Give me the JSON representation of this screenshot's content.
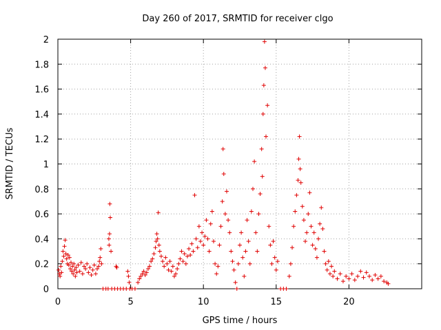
{
  "chart_data": {
    "type": "scatter",
    "title": "Day 260 of 2017, SRMTID for receiver clgo",
    "xlabel": "GPS time / hours",
    "ylabel": "SRMTID / TECUs",
    "xlim": [
      0,
      25
    ],
    "ylim": [
      0,
      2
    ],
    "x_ticks": [
      0,
      5,
      10,
      15,
      20
    ],
    "x_tick_labels": [
      "0",
      "5",
      "10",
      "15",
      "20"
    ],
    "y_ticks": [
      0,
      0.2,
      0.4,
      0.6,
      0.8,
      1,
      1.2,
      1.4,
      1.6,
      1.8,
      2
    ],
    "y_tick_labels": [
      "0",
      "0.2",
      "0.4",
      "0.6",
      "0.8",
      "1",
      "1.2",
      "1.4",
      "1.6",
      "1.8",
      "2"
    ],
    "grid": true,
    "marker": "+",
    "marker_color": "#e00000",
    "series": [
      {
        "name": "SRMTID",
        "points": [
          [
            0.05,
            0.15
          ],
          [
            0.1,
            0.12
          ],
          [
            0.15,
            0.1
          ],
          [
            0.2,
            0.18
          ],
          [
            0.25,
            0.13
          ],
          [
            0.3,
            0.22
          ],
          [
            0.35,
            0.3
          ],
          [
            0.4,
            0.26
          ],
          [
            0.45,
            0.34
          ],
          [
            0.5,
            0.39
          ],
          [
            0.55,
            0.28
          ],
          [
            0.6,
            0.24
          ],
          [
            0.65,
            0.2
          ],
          [
            0.7,
            0.27
          ],
          [
            0.75,
            0.19
          ],
          [
            0.8,
            0.25
          ],
          [
            0.85,
            0.16
          ],
          [
            0.9,
            0.21
          ],
          [
            0.95,
            0.14
          ],
          [
            1.0,
            0.18
          ],
          [
            1.05,
            0.12
          ],
          [
            1.1,
            0.2
          ],
          [
            1.15,
            0.15
          ],
          [
            1.2,
            0.1
          ],
          [
            1.25,
            0.17
          ],
          [
            1.3,
            0.13
          ],
          [
            1.4,
            0.19
          ],
          [
            1.5,
            0.14
          ],
          [
            1.6,
            0.21
          ],
          [
            1.7,
            0.12
          ],
          [
            1.8,
            0.18
          ],
          [
            1.9,
            0.16
          ],
          [
            2.0,
            0.2
          ],
          [
            2.1,
            0.13
          ],
          [
            2.2,
            0.17
          ],
          [
            2.3,
            0.11
          ],
          [
            2.4,
            0.15
          ],
          [
            2.5,
            0.19
          ],
          [
            2.6,
            0.12
          ],
          [
            2.7,
            0.16
          ],
          [
            2.8,
            0.18
          ],
          [
            2.85,
            0.22
          ],
          [
            2.9,
            0.25
          ],
          [
            2.95,
            0.32
          ],
          [
            3.0,
            0.2
          ],
          [
            3.1,
            0.0
          ],
          [
            3.3,
            0.0
          ],
          [
            3.45,
            0.0
          ],
          [
            3.5,
            0.4
          ],
          [
            3.52,
            0.35
          ],
          [
            3.55,
            0.44
          ],
          [
            3.57,
            0.68
          ],
          [
            3.6,
            0.57
          ],
          [
            3.65,
            0.3
          ],
          [
            3.7,
            0.0
          ],
          [
            3.9,
            0.0
          ],
          [
            4.0,
            0.18
          ],
          [
            4.05,
            0.17
          ],
          [
            4.1,
            0.0
          ],
          [
            4.3,
            0.0
          ],
          [
            4.5,
            0.0
          ],
          [
            4.7,
            0.0
          ],
          [
            4.8,
            0.14
          ],
          [
            4.85,
            0.1
          ],
          [
            4.9,
            0.05
          ],
          [
            4.95,
            0.0
          ],
          [
            5.1,
            0.0
          ],
          [
            5.3,
            0.0
          ],
          [
            5.5,
            0.05
          ],
          [
            5.6,
            0.08
          ],
          [
            5.7,
            0.1
          ],
          [
            5.8,
            0.12
          ],
          [
            5.9,
            0.14
          ],
          [
            6.0,
            0.11
          ],
          [
            6.1,
            0.13
          ],
          [
            6.2,
            0.16
          ],
          [
            6.3,
            0.18
          ],
          [
            6.4,
            0.22
          ],
          [
            6.5,
            0.24
          ],
          [
            6.6,
            0.28
          ],
          [
            6.7,
            0.33
          ],
          [
            6.75,
            0.38
          ],
          [
            6.8,
            0.44
          ],
          [
            6.85,
            0.4
          ],
          [
            6.9,
            0.61
          ],
          [
            6.95,
            0.35
          ],
          [
            7.0,
            0.3
          ],
          [
            7.1,
            0.26
          ],
          [
            7.2,
            0.22
          ],
          [
            7.3,
            0.18
          ],
          [
            7.4,
            0.25
          ],
          [
            7.5,
            0.2
          ],
          [
            7.6,
            0.15
          ],
          [
            7.7,
            0.22
          ],
          [
            7.8,
            0.14
          ],
          [
            7.9,
            0.18
          ],
          [
            8.0,
            0.1
          ],
          [
            8.1,
            0.12
          ],
          [
            8.2,
            0.16
          ],
          [
            8.3,
            0.2
          ],
          [
            8.4,
            0.24
          ],
          [
            8.5,
            0.3
          ],
          [
            8.6,
            0.22
          ],
          [
            8.7,
            0.28
          ],
          [
            8.8,
            0.2
          ],
          [
            8.9,
            0.26
          ],
          [
            9.0,
            0.32
          ],
          [
            9.1,
            0.27
          ],
          [
            9.2,
            0.36
          ],
          [
            9.3,
            0.3
          ],
          [
            9.4,
            0.75
          ],
          [
            9.5,
            0.4
          ],
          [
            9.6,
            0.33
          ],
          [
            9.7,
            0.5
          ],
          [
            9.8,
            0.38
          ],
          [
            9.9,
            0.45
          ],
          [
            10.0,
            0.35
          ],
          [
            10.1,
            0.42
          ],
          [
            10.2,
            0.55
          ],
          [
            10.3,
            0.4
          ],
          [
            10.4,
            0.3
          ],
          [
            10.5,
            0.52
          ],
          [
            10.6,
            0.62
          ],
          [
            10.7,
            0.38
          ],
          [
            10.8,
            0.2
          ],
          [
            10.9,
            0.12
          ],
          [
            11.0,
            0.18
          ],
          [
            11.1,
            0.35
          ],
          [
            11.2,
            0.5
          ],
          [
            11.3,
            0.7
          ],
          [
            11.35,
            1.12
          ],
          [
            11.4,
            0.92
          ],
          [
            11.5,
            0.6
          ],
          [
            11.6,
            0.78
          ],
          [
            11.7,
            0.55
          ],
          [
            11.8,
            0.45
          ],
          [
            11.9,
            0.3
          ],
          [
            12.0,
            0.22
          ],
          [
            12.1,
            0.15
          ],
          [
            12.2,
            0.05
          ],
          [
            12.3,
            0.0
          ],
          [
            12.4,
            0.2
          ],
          [
            12.5,
            0.35
          ],
          [
            12.6,
            0.45
          ],
          [
            12.7,
            0.25
          ],
          [
            12.8,
            0.1
          ],
          [
            12.9,
            0.3
          ],
          [
            13.0,
            0.55
          ],
          [
            13.1,
            0.38
          ],
          [
            13.2,
            0.2
          ],
          [
            13.3,
            0.62
          ],
          [
            13.4,
            0.8
          ],
          [
            13.5,
            1.02
          ],
          [
            13.6,
            0.45
          ],
          [
            13.7,
            0.3
          ],
          [
            13.8,
            0.6
          ],
          [
            13.9,
            0.76
          ],
          [
            14.0,
            1.12
          ],
          [
            14.05,
            0.9
          ],
          [
            14.1,
            1.4
          ],
          [
            14.15,
            1.63
          ],
          [
            14.2,
            1.98
          ],
          [
            14.25,
            1.77
          ],
          [
            14.3,
            1.22
          ],
          [
            14.4,
            1.47
          ],
          [
            14.5,
            0.5
          ],
          [
            14.6,
            0.35
          ],
          [
            14.7,
            0.2
          ],
          [
            14.8,
            0.38
          ],
          [
            14.9,
            0.25
          ],
          [
            15.0,
            0.15
          ],
          [
            15.1,
            0.22
          ],
          [
            15.3,
            0.0
          ],
          [
            15.5,
            0.0
          ],
          [
            15.7,
            0.0
          ],
          [
            15.9,
            0.1
          ],
          [
            16.0,
            0.2
          ],
          [
            16.1,
            0.33
          ],
          [
            16.2,
            0.5
          ],
          [
            16.3,
            0.62
          ],
          [
            16.4,
            0.75
          ],
          [
            16.5,
            0.87
          ],
          [
            16.55,
            1.04
          ],
          [
            16.6,
            1.22
          ],
          [
            16.65,
            0.96
          ],
          [
            16.7,
            0.85
          ],
          [
            16.8,
            0.66
          ],
          [
            16.9,
            0.55
          ],
          [
            17.0,
            0.38
          ],
          [
            17.1,
            0.45
          ],
          [
            17.2,
            0.6
          ],
          [
            17.3,
            0.77
          ],
          [
            17.4,
            0.5
          ],
          [
            17.5,
            0.35
          ],
          [
            17.6,
            0.45
          ],
          [
            17.7,
            0.32
          ],
          [
            17.8,
            0.25
          ],
          [
            17.9,
            0.4
          ],
          [
            18.0,
            0.52
          ],
          [
            18.1,
            0.65
          ],
          [
            18.2,
            0.48
          ],
          [
            18.3,
            0.3
          ],
          [
            18.4,
            0.2
          ],
          [
            18.5,
            0.15
          ],
          [
            18.6,
            0.22
          ],
          [
            18.7,
            0.12
          ],
          [
            18.8,
            0.18
          ],
          [
            18.9,
            0.1
          ],
          [
            19.0,
            0.14
          ],
          [
            19.2,
            0.08
          ],
          [
            19.4,
            0.12
          ],
          [
            19.6,
            0.06
          ],
          [
            19.8,
            0.1
          ],
          [
            20.0,
            0.08
          ],
          [
            20.2,
            0.12
          ],
          [
            20.4,
            0.07
          ],
          [
            20.6,
            0.1
          ],
          [
            20.8,
            0.14
          ],
          [
            21.0,
            0.09
          ],
          [
            21.2,
            0.13
          ],
          [
            21.4,
            0.1
          ],
          [
            21.6,
            0.07
          ],
          [
            21.8,
            0.11
          ],
          [
            22.0,
            0.08
          ],
          [
            22.2,
            0.1
          ],
          [
            22.4,
            0.06
          ],
          [
            22.6,
            0.05
          ],
          [
            22.7,
            0.04
          ]
        ]
      }
    ]
  }
}
